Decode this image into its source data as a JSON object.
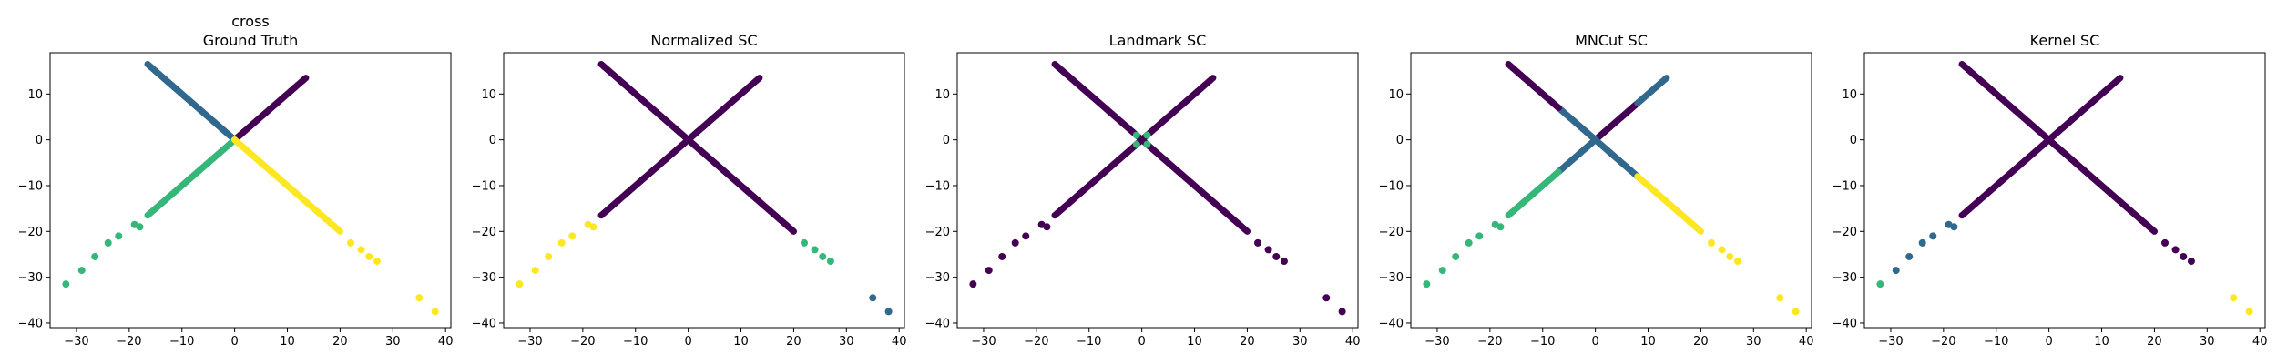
{
  "figure": {
    "palette": {
      "purple": "#440154",
      "blue": "#31688e",
      "green": "#35b779",
      "yellow": "#fde725"
    }
  },
  "chart_data": [
    {
      "type": "scatter",
      "title": "cross",
      "subtitle": "Ground Truth",
      "xlim": [
        -35,
        41
      ],
      "ylim": [
        -41,
        19
      ],
      "xticks": [
        -30,
        -20,
        -10,
        0,
        10,
        20,
        30,
        40
      ],
      "yticks": [
        10,
        0,
        -10,
        -20,
        -30,
        -40
      ],
      "grid": false,
      "segments": [
        {
          "x0": 0,
          "y0": 0,
          "x1": 13.5,
          "y1": 13.5,
          "color": "purple"
        },
        {
          "x0": 0,
          "y0": 0,
          "x1": -16.5,
          "y1": 16.5,
          "color": "blue"
        },
        {
          "x0": 0,
          "y0": 0,
          "x1": -16.5,
          "y1": -16.5,
          "color": "green"
        },
        {
          "x0": 0,
          "y0": 0,
          "x1": 20,
          "y1": -20,
          "color": "yellow"
        }
      ],
      "points": [
        {
          "x": -18,
          "y": -19,
          "c": "green"
        },
        {
          "x": -19,
          "y": -18.5,
          "c": "green"
        },
        {
          "x": -22,
          "y": -21,
          "c": "green"
        },
        {
          "x": -24,
          "y": -22.5,
          "c": "green"
        },
        {
          "x": -26.5,
          "y": -25.5,
          "c": "green"
        },
        {
          "x": -29,
          "y": -28.5,
          "c": "green"
        },
        {
          "x": -32,
          "y": -31.5,
          "c": "green"
        },
        {
          "x": 22,
          "y": -22.5,
          "c": "yellow"
        },
        {
          "x": 24,
          "y": -24,
          "c": "yellow"
        },
        {
          "x": 25.5,
          "y": -25.5,
          "c": "yellow"
        },
        {
          "x": 27,
          "y": -26.5,
          "c": "yellow"
        },
        {
          "x": 35,
          "y": -34.5,
          "c": "yellow"
        },
        {
          "x": 38,
          "y": -37.5,
          "c": "yellow"
        }
      ]
    },
    {
      "type": "scatter",
      "title": "Normalized SC",
      "xlim": [
        -35,
        41
      ],
      "ylim": [
        -41,
        19
      ],
      "xticks": [
        -30,
        -20,
        -10,
        0,
        10,
        20,
        30,
        40
      ],
      "yticks": [
        10,
        0,
        -10,
        -20,
        -30,
        -40
      ],
      "grid": false,
      "segments": [
        {
          "x0": 0,
          "y0": 0,
          "x1": 13.5,
          "y1": 13.5,
          "color": "purple"
        },
        {
          "x0": 0,
          "y0": 0,
          "x1": -16.5,
          "y1": 16.5,
          "color": "purple"
        },
        {
          "x0": 0,
          "y0": 0,
          "x1": -16.5,
          "y1": -16.5,
          "color": "purple"
        },
        {
          "x0": 0,
          "y0": 0,
          "x1": 20,
          "y1": -20,
          "color": "purple"
        }
      ],
      "points": [
        {
          "x": -18,
          "y": -19,
          "c": "yellow"
        },
        {
          "x": -19,
          "y": -18.5,
          "c": "yellow"
        },
        {
          "x": -22,
          "y": -21,
          "c": "yellow"
        },
        {
          "x": -24,
          "y": -22.5,
          "c": "yellow"
        },
        {
          "x": -26.5,
          "y": -25.5,
          "c": "yellow"
        },
        {
          "x": -29,
          "y": -28.5,
          "c": "yellow"
        },
        {
          "x": -32,
          "y": -31.5,
          "c": "yellow"
        },
        {
          "x": 22,
          "y": -22.5,
          "c": "green"
        },
        {
          "x": 24,
          "y": -24,
          "c": "green"
        },
        {
          "x": 25.5,
          "y": -25.5,
          "c": "green"
        },
        {
          "x": 27,
          "y": -26.5,
          "c": "green"
        },
        {
          "x": 35,
          "y": -34.5,
          "c": "blue"
        },
        {
          "x": 38,
          "y": -37.5,
          "c": "blue"
        }
      ]
    },
    {
      "type": "scatter",
      "title": "Landmark SC",
      "xlim": [
        -35,
        41
      ],
      "ylim": [
        -41,
        19
      ],
      "xticks": [
        -30,
        -20,
        -10,
        0,
        10,
        20,
        30,
        40
      ],
      "yticks": [
        10,
        0,
        -10,
        -20,
        -30,
        -40
      ],
      "grid": false,
      "segments": [
        {
          "x0": 0,
          "y0": 0,
          "x1": 13.5,
          "y1": 13.5,
          "color": "purple"
        },
        {
          "x0": 0,
          "y0": 0,
          "x1": -16.5,
          "y1": 16.5,
          "color": "purple"
        },
        {
          "x0": 0,
          "y0": 0,
          "x1": -16.5,
          "y1": -16.5,
          "color": "purple"
        },
        {
          "x0": 0,
          "y0": 0,
          "x1": 20,
          "y1": -20,
          "color": "purple"
        }
      ],
      "points": [
        {
          "x": -1,
          "y": 1,
          "c": "green"
        },
        {
          "x": 1,
          "y": 1,
          "c": "green"
        },
        {
          "x": -1,
          "y": -1,
          "c": "green"
        },
        {
          "x": 1,
          "y": -1,
          "c": "green"
        },
        {
          "x": -18,
          "y": -19,
          "c": "purple"
        },
        {
          "x": -19,
          "y": -18.5,
          "c": "purple"
        },
        {
          "x": -22,
          "y": -21,
          "c": "purple"
        },
        {
          "x": -24,
          "y": -22.5,
          "c": "purple"
        },
        {
          "x": -26.5,
          "y": -25.5,
          "c": "purple"
        },
        {
          "x": -29,
          "y": -28.5,
          "c": "purple"
        },
        {
          "x": -32,
          "y": -31.5,
          "c": "purple"
        },
        {
          "x": 22,
          "y": -22.5,
          "c": "purple"
        },
        {
          "x": 24,
          "y": -24,
          "c": "purple"
        },
        {
          "x": 25.5,
          "y": -25.5,
          "c": "purple"
        },
        {
          "x": 27,
          "y": -26.5,
          "c": "purple"
        },
        {
          "x": 35,
          "y": -34.5,
          "c": "purple"
        },
        {
          "x": 38,
          "y": -37.5,
          "c": "purple"
        }
      ]
    },
    {
      "type": "scatter",
      "title": "MNCut SC",
      "xlim": [
        -35,
        41
      ],
      "ylim": [
        -41,
        19
      ],
      "xticks": [
        -30,
        -20,
        -10,
        0,
        10,
        20,
        30,
        40
      ],
      "yticks": [
        10,
        0,
        -10,
        -20,
        -30,
        -40
      ],
      "grid": false,
      "segments": [
        {
          "x0": 0,
          "y0": 0,
          "x1": 8,
          "y1": 8,
          "color": "purple"
        },
        {
          "x0": 8,
          "y0": 8,
          "x1": 13.5,
          "y1": 13.5,
          "color": "blue"
        },
        {
          "x0": 0,
          "y0": 0,
          "x1": -7,
          "y1": 7,
          "color": "blue"
        },
        {
          "x0": -7,
          "y0": 7,
          "x1": -16.5,
          "y1": 16.5,
          "color": "purple"
        },
        {
          "x0": 0,
          "y0": 0,
          "x1": -7,
          "y1": -7,
          "color": "blue"
        },
        {
          "x0": -7,
          "y0": -7,
          "x1": -16.5,
          "y1": -16.5,
          "color": "green"
        },
        {
          "x0": 0,
          "y0": 0,
          "x1": 8,
          "y1": -8,
          "color": "blue"
        },
        {
          "x0": 8,
          "y0": -8,
          "x1": 20,
          "y1": -20,
          "color": "yellow"
        }
      ],
      "points": [
        {
          "x": -18,
          "y": -19,
          "c": "green"
        },
        {
          "x": -19,
          "y": -18.5,
          "c": "green"
        },
        {
          "x": -22,
          "y": -21,
          "c": "green"
        },
        {
          "x": -24,
          "y": -22.5,
          "c": "green"
        },
        {
          "x": -26.5,
          "y": -25.5,
          "c": "green"
        },
        {
          "x": -29,
          "y": -28.5,
          "c": "green"
        },
        {
          "x": -32,
          "y": -31.5,
          "c": "green"
        },
        {
          "x": 22,
          "y": -22.5,
          "c": "yellow"
        },
        {
          "x": 24,
          "y": -24,
          "c": "yellow"
        },
        {
          "x": 25.5,
          "y": -25.5,
          "c": "yellow"
        },
        {
          "x": 27,
          "y": -26.5,
          "c": "yellow"
        },
        {
          "x": 35,
          "y": -34.5,
          "c": "yellow"
        },
        {
          "x": 38,
          "y": -37.5,
          "c": "yellow"
        }
      ]
    },
    {
      "type": "scatter",
      "title": "Kernel SC",
      "xlim": [
        -35,
        41
      ],
      "ylim": [
        -41,
        19
      ],
      "xticks": [
        -30,
        -20,
        -10,
        0,
        10,
        20,
        30,
        40
      ],
      "yticks": [
        10,
        0,
        -10,
        -20,
        -30,
        -40
      ],
      "grid": false,
      "segments": [
        {
          "x0": 0,
          "y0": 0,
          "x1": 13.5,
          "y1": 13.5,
          "color": "purple"
        },
        {
          "x0": 0,
          "y0": 0,
          "x1": -16.5,
          "y1": 16.5,
          "color": "purple"
        },
        {
          "x0": 0,
          "y0": 0,
          "x1": -16.5,
          "y1": -16.5,
          "color": "purple"
        },
        {
          "x0": 0,
          "y0": 0,
          "x1": 20,
          "y1": -20,
          "color": "purple"
        }
      ],
      "points": [
        {
          "x": -18,
          "y": -19,
          "c": "blue"
        },
        {
          "x": -19,
          "y": -18.5,
          "c": "blue"
        },
        {
          "x": -22,
          "y": -21,
          "c": "blue"
        },
        {
          "x": -24,
          "y": -22.5,
          "c": "blue"
        },
        {
          "x": -26.5,
          "y": -25.5,
          "c": "blue"
        },
        {
          "x": -29,
          "y": -28.5,
          "c": "blue"
        },
        {
          "x": -32,
          "y": -31.5,
          "c": "green"
        },
        {
          "x": 22,
          "y": -22.5,
          "c": "purple"
        },
        {
          "x": 24,
          "y": -24,
          "c": "purple"
        },
        {
          "x": 25.5,
          "y": -25.5,
          "c": "purple"
        },
        {
          "x": 27,
          "y": -26.5,
          "c": "purple"
        },
        {
          "x": 35,
          "y": -34.5,
          "c": "yellow"
        },
        {
          "x": 38,
          "y": -37.5,
          "c": "yellow"
        }
      ]
    }
  ]
}
